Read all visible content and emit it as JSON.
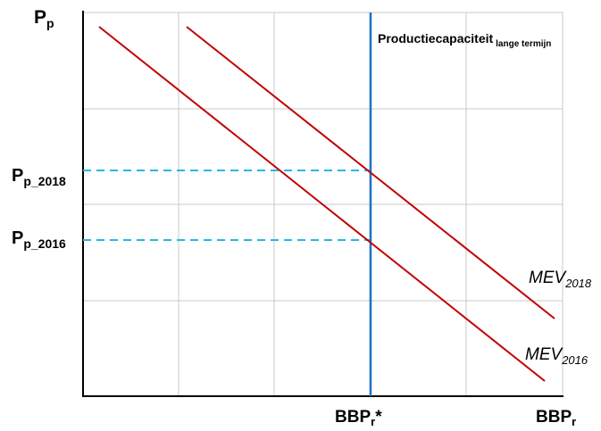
{
  "axes": {
    "y_label": {
      "main": "P",
      "sub": "p"
    },
    "x_label": {
      "main": "BBP",
      "sub": "r"
    }
  },
  "price_levels": [
    {
      "main": "P",
      "sub": "p_2018",
      "line_color": "#29b6e8"
    },
    {
      "main": "P",
      "sub": "p_2016",
      "line_color": "#29b6e8"
    }
  ],
  "potential_output": {
    "tick_label": {
      "main": "BBP",
      "sub": "r",
      "suffix": "*"
    },
    "annotation": {
      "main": "Productiecapaciteit",
      "sub": "lange termijn"
    },
    "color": "#1f74c6"
  },
  "curves": [
    {
      "main": "MEV",
      "sub": "2018",
      "color": "#c00000"
    },
    {
      "main": "MEV",
      "sub": "2016",
      "color": "#c00000"
    }
  ],
  "colors": {
    "grid": "#c8c8c8",
    "axis": "#000000",
    "background": "#ffffff"
  }
}
